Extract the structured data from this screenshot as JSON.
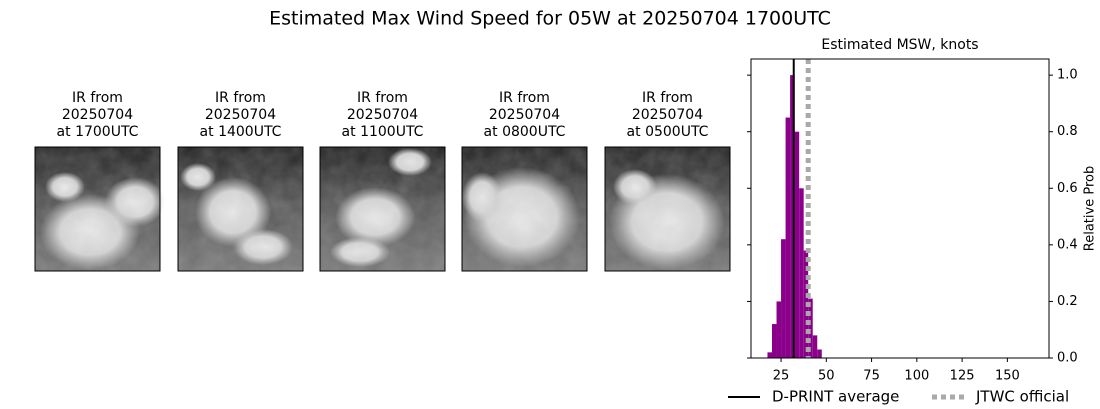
{
  "title": "Estimated Max Wind Speed for 05W at 20250704 1700UTC",
  "panels": [
    {
      "lines": [
        "IR from",
        "20250704",
        "at 1700UTC"
      ]
    },
    {
      "lines": [
        "IR from",
        "20250704",
        "at 1400UTC"
      ]
    },
    {
      "lines": [
        "IR from",
        "20250704",
        "at 1100UTC"
      ]
    },
    {
      "lines": [
        "IR from",
        "20250704",
        "at 0800UTC"
      ]
    },
    {
      "lines": [
        "IR from",
        "20250704",
        "at 0500UTC"
      ]
    }
  ],
  "chart_data": {
    "type": "histogram",
    "title": "Estimated MSW, knots",
    "ylabel": "Relative Prob",
    "bins": [
      17.5,
      20,
      22.5,
      25,
      27.5,
      30,
      32.5,
      35,
      37.5,
      40,
      42.5,
      45,
      47.5
    ],
    "counts": [
      0.02,
      0.12,
      0.2,
      0.42,
      0.85,
      1.0,
      0.8,
      0.6,
      0.38,
      0.21,
      0.08,
      0.03
    ],
    "color": "#8b008b",
    "xlim": [
      8.4,
      173
    ],
    "xticks": [
      25,
      50,
      75,
      100,
      125,
      150
    ],
    "ylim": [
      0,
      1.057
    ],
    "yticks": [
      {
        "value": 0,
        "label": "0.0"
      },
      0.2,
      0.4,
      0.6,
      0.8,
      {
        "value": 1,
        "label": "1.0"
      }
    ],
    "grid": false,
    "lines": [
      {
        "name": "D-PRINT average",
        "value": 32,
        "color": "#000000",
        "style": "solid"
      },
      {
        "name": "JTWC official",
        "value": 40,
        "color": "#a9a9a9",
        "style": "dotted"
      }
    ],
    "legend": "bottom"
  }
}
